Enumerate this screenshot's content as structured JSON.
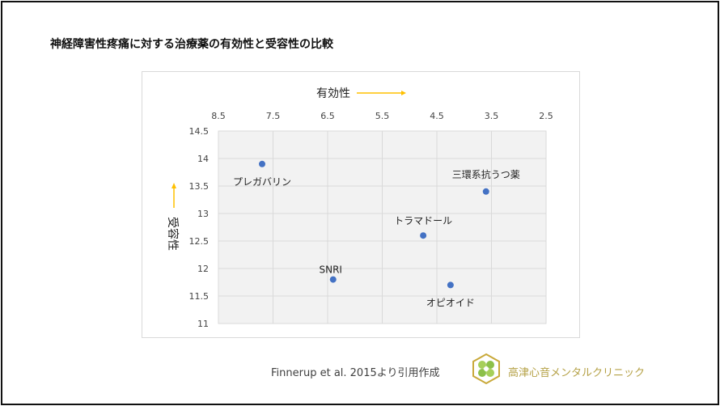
{
  "title": "神経障害性疼痛に対する治療薬の有効性と受容性の比較",
  "footer": {
    "citation": "Finnerup et al. 2015より引用作成",
    "clinic_name": "高津心音メンタルクリニック"
  },
  "colors": {
    "point": "#4472c4",
    "arrow": "#ffc000",
    "plot_bg": "#f2f2f2",
    "grid": "#d9d9d9",
    "clinic": "#b5a146"
  },
  "chart_data": {
    "type": "scatter",
    "title": "",
    "xlabel": "有効性",
    "ylabel": "受容性",
    "xlim": [
      8.5,
      2.5
    ],
    "x_reversed": true,
    "x_axis_position": "top",
    "ylim": [
      11,
      14.5
    ],
    "xticks": [
      "8.5",
      "7.5",
      "6.5",
      "5.5",
      "4.5",
      "3.5",
      "2.5"
    ],
    "yticks": [
      "14.5",
      "14",
      "13.5",
      "13",
      "12.5",
      "12",
      "11.5",
      "11"
    ],
    "grid": true,
    "points": [
      {
        "label": "プレガバリン",
        "x": 7.7,
        "y": 13.9
      },
      {
        "label": "三環系抗うつ薬",
        "x": 3.6,
        "y": 13.4
      },
      {
        "label": "トラマドール",
        "x": 4.75,
        "y": 12.6
      },
      {
        "label": "SNRI",
        "x": 6.4,
        "y": 11.8
      },
      {
        "label": "オピオイド",
        "x": 4.25,
        "y": 11.7
      }
    ]
  }
}
